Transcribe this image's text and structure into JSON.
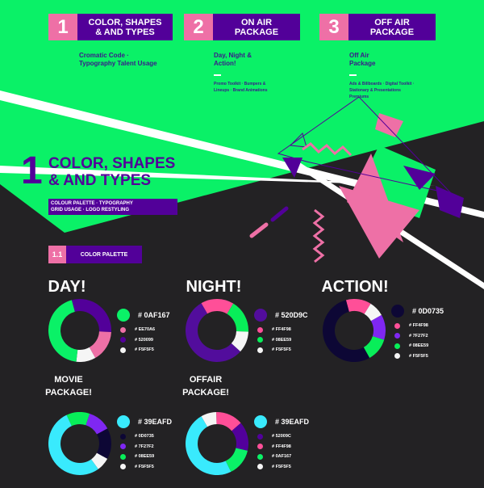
{
  "colors": {
    "green": "#0AF167",
    "purple": "#520099",
    "pink": "#EE70A6",
    "dark": "#232224",
    "white": "#F5F5F5"
  },
  "steps": [
    {
      "num": "1",
      "label": "COLOR, SHAPES & AND TYPES",
      "desc": "Cromatic Code · Typography Talent Usage",
      "detail": ""
    },
    {
      "num": "2",
      "label": "ON AIR PACKAGE",
      "desc": "Day, Night & Action!",
      "detail": "Promo Toolkit · Bumpers & Lineups · Brand Animations"
    },
    {
      "num": "3",
      "label": "OFF AIR PACKAGE",
      "desc": "Off Air Package",
      "detail": "Ads & Billboards · Digital Toolkit · Stationary & Presentations Premiums"
    }
  ],
  "section": {
    "num": "1",
    "title": "COLOR, SHAPES & AND TYPES",
    "tags_line1": "COLOUR PALETTE · TYPOGRAPHY",
    "tags_line2": "GRID USAGE · LOGO RESTYLING"
  },
  "subsection": {
    "num": "1.1",
    "label": "COLOR PALETTE"
  },
  "palettes": [
    {
      "title": "DAY!",
      "main": {
        "label": "# 0AF167",
        "color": "#0AF167"
      },
      "others": [
        {
          "label": "# EE70A6",
          "color": "#EE70A6"
        },
        {
          "label": "# 520099",
          "color": "#520099"
        },
        {
          "label": "# F5F5F5",
          "color": "#F5F5F5"
        }
      ],
      "segments": [
        {
          "color": "#520099",
          "value": 0.3
        },
        {
          "color": "#EE70A6",
          "value": 0.16
        },
        {
          "color": "#F5F5F5",
          "value": 0.1
        },
        {
          "color": "#0AF167",
          "value": 0.44
        }
      ],
      "start_deg": -15
    },
    {
      "title": "NIGHT!",
      "main": {
        "label": "# 520D9C",
        "color": "#520D9C"
      },
      "others": [
        {
          "label": "# FF4F98",
          "color": "#FF4F98"
        },
        {
          "label": "# 08EE59",
          "color": "#08EE59"
        },
        {
          "label": "# F5F5F5",
          "color": "#F5F5F5"
        }
      ],
      "segments": [
        {
          "color": "#FF4F98",
          "value": 0.17
        },
        {
          "color": "#08EE59",
          "value": 0.17
        },
        {
          "color": "#F5F5F5",
          "value": 0.11
        },
        {
          "color": "#520D9C",
          "value": 0.55
        }
      ],
      "start_deg": -30
    },
    {
      "title": "ACTION!",
      "main": {
        "label": "# 0D0735",
        "color": "#0D0735"
      },
      "others": [
        {
          "label": "# FF4F98",
          "color": "#FF4F98"
        },
        {
          "label": "# 7F27F2",
          "color": "#7F27F2"
        },
        {
          "label": "# 08EE59",
          "color": "#08EE59"
        },
        {
          "label": "# F5F5F5",
          "color": "#F5F5F5"
        }
      ],
      "segments": [
        {
          "color": "#FF4F98",
          "value": 0.13
        },
        {
          "color": "#F5F5F5",
          "value": 0.08
        },
        {
          "color": "#7F27F2",
          "value": 0.13
        },
        {
          "color": "#08EE59",
          "value": 0.12
        },
        {
          "color": "#0D0735",
          "value": 0.54
        }
      ],
      "start_deg": -15
    },
    {
      "title": "MOVIE PACKAGE!",
      "main": {
        "label": "# 39EAFD",
        "color": "#39EAFD"
      },
      "others": [
        {
          "label": "# 0D0735",
          "color": "#0D0735"
        },
        {
          "label": "# 7F27F2",
          "color": "#7F27F2"
        },
        {
          "label": "# 08EE59",
          "color": "#08EE59"
        },
        {
          "label": "# F5F5F5",
          "color": "#F5F5F5"
        }
      ],
      "segments": [
        {
          "color": "#08EE59",
          "value": 0.12
        },
        {
          "color": "#7F27F2",
          "value": 0.12
        },
        {
          "color": "#0D0735",
          "value": 0.16
        },
        {
          "color": "#F5F5F5",
          "value": 0.07
        },
        {
          "color": "#39EAFD",
          "value": 0.53
        }
      ],
      "start_deg": -25
    },
    {
      "title": "OFFAIR PACKAGE!",
      "main": {
        "label": "# 39EAFD",
        "color": "#39EAFD"
      },
      "others": [
        {
          "label": "# 52009C",
          "color": "#52009C"
        },
        {
          "label": "# FF4F98",
          "color": "#FF4F98"
        },
        {
          "label": "# 0AF167",
          "color": "#0AF167"
        },
        {
          "label": "# F5F5F5",
          "color": "#F5F5F5"
        }
      ],
      "segments": [
        {
          "color": "#F5F5F5",
          "value": 0.08
        },
        {
          "color": "#FF4F98",
          "value": 0.14
        },
        {
          "color": "#52009C",
          "value": 0.15
        },
        {
          "color": "#0AF167",
          "value": 0.14
        },
        {
          "color": "#39EAFD",
          "value": 0.49
        }
      ],
      "start_deg": -30
    }
  ]
}
